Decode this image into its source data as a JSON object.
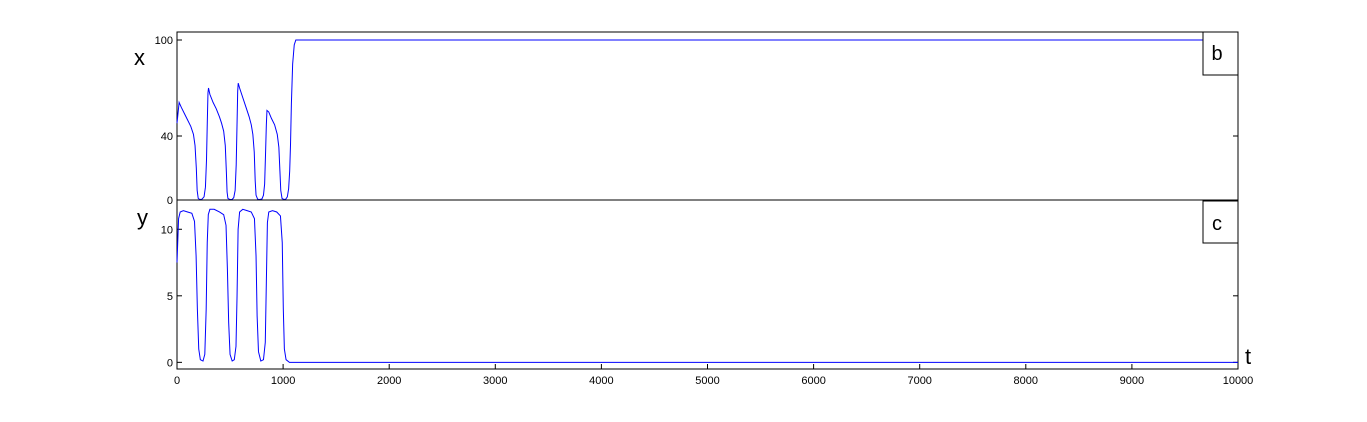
{
  "chart_data": [
    {
      "type": "line",
      "panel_label": "b",
      "ylabel": "x",
      "xlim": [
        0,
        10000
      ],
      "ylim": [
        0,
        105
      ],
      "yticks": [
        0,
        40,
        100
      ],
      "ytick_labels": [
        "0",
        "40",
        "100"
      ],
      "grid": false,
      "series": [
        {
          "color": "#0000ff",
          "points": [
            [
              0,
              48
            ],
            [
              20,
              61
            ],
            [
              40,
              58
            ],
            [
              70,
              54
            ],
            [
              100,
              50
            ],
            [
              130,
              46
            ],
            [
              155,
              41
            ],
            [
              170,
              34
            ],
            [
              182,
              20
            ],
            [
              190,
              6
            ],
            [
              200,
              1
            ],
            [
              215,
              0.3
            ],
            [
              235,
              0.5
            ],
            [
              255,
              2
            ],
            [
              268,
              8
            ],
            [
              278,
              25
            ],
            [
              286,
              50
            ],
            [
              292,
              67
            ],
            [
              297,
              70
            ],
            [
              310,
              66
            ],
            [
              340,
              61
            ],
            [
              370,
              57
            ],
            [
              400,
              52
            ],
            [
              420,
              48
            ],
            [
              440,
              43
            ],
            [
              455,
              34
            ],
            [
              465,
              18
            ],
            [
              472,
              5
            ],
            [
              480,
              1
            ],
            [
              500,
              0.3
            ],
            [
              520,
              0.4
            ],
            [
              535,
              1.5
            ],
            [
              548,
              6
            ],
            [
              558,
              22
            ],
            [
              566,
              48
            ],
            [
              572,
              68
            ],
            [
              577,
              73
            ],
            [
              590,
              70
            ],
            [
              620,
              64
            ],
            [
              650,
              58
            ],
            [
              680,
              52
            ],
            [
              700,
              47
            ],
            [
              715,
              41
            ],
            [
              728,
              30
            ],
            [
              737,
              12
            ],
            [
              745,
              3
            ],
            [
              760,
              0.5
            ],
            [
              780,
              0.3
            ],
            [
              800,
              0.6
            ],
            [
              815,
              3
            ],
            [
              826,
              10
            ],
            [
              835,
              30
            ],
            [
              842,
              47
            ],
            [
              848,
              56
            ],
            [
              865,
              55
            ],
            [
              890,
              51
            ],
            [
              920,
              47
            ],
            [
              945,
              41
            ],
            [
              960,
              33
            ],
            [
              970,
              18
            ],
            [
              978,
              6
            ],
            [
              990,
              1
            ],
            [
              1005,
              0.4
            ],
            [
              1025,
              0.5
            ],
            [
              1040,
              2
            ],
            [
              1052,
              7
            ],
            [
              1062,
              18
            ],
            [
              1070,
              35
            ],
            [
              1078,
              60
            ],
            [
              1090,
              85
            ],
            [
              1105,
              97
            ],
            [
              1120,
              100
            ],
            [
              1140,
              100
            ],
            [
              10000,
              100
            ]
          ]
        }
      ]
    },
    {
      "type": "line",
      "panel_label": "c",
      "ylabel": "y",
      "xlabel": "t",
      "xlim": [
        0,
        10000
      ],
      "ylim": [
        -0.5,
        12.2
      ],
      "yticks": [
        0,
        5,
        10
      ],
      "ytick_labels": [
        "0",
        "5",
        "10"
      ],
      "xticks": [
        0,
        1000,
        2000,
        3000,
        4000,
        5000,
        6000,
        7000,
        8000,
        9000,
        10000
      ],
      "xtick_labels": [
        "0",
        "1000",
        "2000",
        "3000",
        "4000",
        "5000",
        "6000",
        "7000",
        "8000",
        "9000",
        "10000"
      ],
      "grid": false,
      "series": [
        {
          "color": "#0000ff",
          "points": [
            [
              0,
              7.5
            ],
            [
              15,
              10.8
            ],
            [
              30,
              11.3
            ],
            [
              60,
              11.4
            ],
            [
              100,
              11.3
            ],
            [
              140,
              11.2
            ],
            [
              165,
              10.6
            ],
            [
              180,
              8
            ],
            [
              192,
              4
            ],
            [
              205,
              1
            ],
            [
              220,
              0.2
            ],
            [
              245,
              0.1
            ],
            [
              262,
              0.6
            ],
            [
              275,
              4
            ],
            [
              285,
              9
            ],
            [
              295,
              11.1
            ],
            [
              310,
              11.5
            ],
            [
              350,
              11.5
            ],
            [
              400,
              11.3
            ],
            [
              440,
              11.1
            ],
            [
              462,
              10.3
            ],
            [
              475,
              7
            ],
            [
              487,
              3
            ],
            [
              500,
              0.6
            ],
            [
              520,
              0.1
            ],
            [
              540,
              0.2
            ],
            [
              556,
              1.2
            ],
            [
              566,
              5
            ],
            [
              576,
              10
            ],
            [
              590,
              11.3
            ],
            [
              620,
              11.5
            ],
            [
              660,
              11.4
            ],
            [
              700,
              11.3
            ],
            [
              730,
              10.8
            ],
            [
              745,
              8
            ],
            [
              755,
              3.5
            ],
            [
              768,
              0.8
            ],
            [
              790,
              0.1
            ],
            [
              815,
              0.2
            ],
            [
              832,
              1.5
            ],
            [
              842,
              6
            ],
            [
              852,
              10.5
            ],
            [
              865,
              11.3
            ],
            [
              900,
              11.4
            ],
            [
              940,
              11.3
            ],
            [
              975,
              11
            ],
            [
              992,
              9
            ],
            [
              1002,
              4
            ],
            [
              1012,
              1
            ],
            [
              1028,
              0.2
            ],
            [
              1060,
              0
            ],
            [
              10000,
              0
            ]
          ]
        }
      ]
    }
  ]
}
